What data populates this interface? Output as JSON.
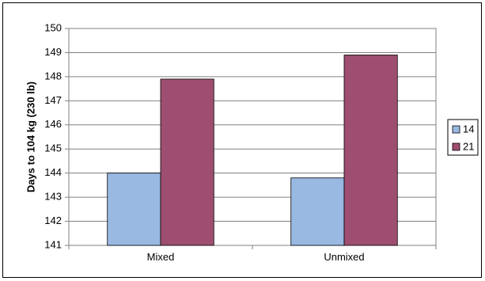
{
  "chart_data": {
    "type": "bar",
    "title": "",
    "xlabel": "",
    "ylabel": "Days to 104 kg (230 lb)",
    "ylim": [
      141,
      150
    ],
    "ytick_step": 1,
    "grid": true,
    "legend_position": "right",
    "categories": [
      "Mixed",
      "Unmixed"
    ],
    "series": [
      {
        "name": "14",
        "values": [
          144.0,
          143.8
        ],
        "color": "#99b8e2"
      },
      {
        "name": "21",
        "values": [
          147.9,
          148.9
        ],
        "color": "#9e4e70"
      }
    ]
  }
}
